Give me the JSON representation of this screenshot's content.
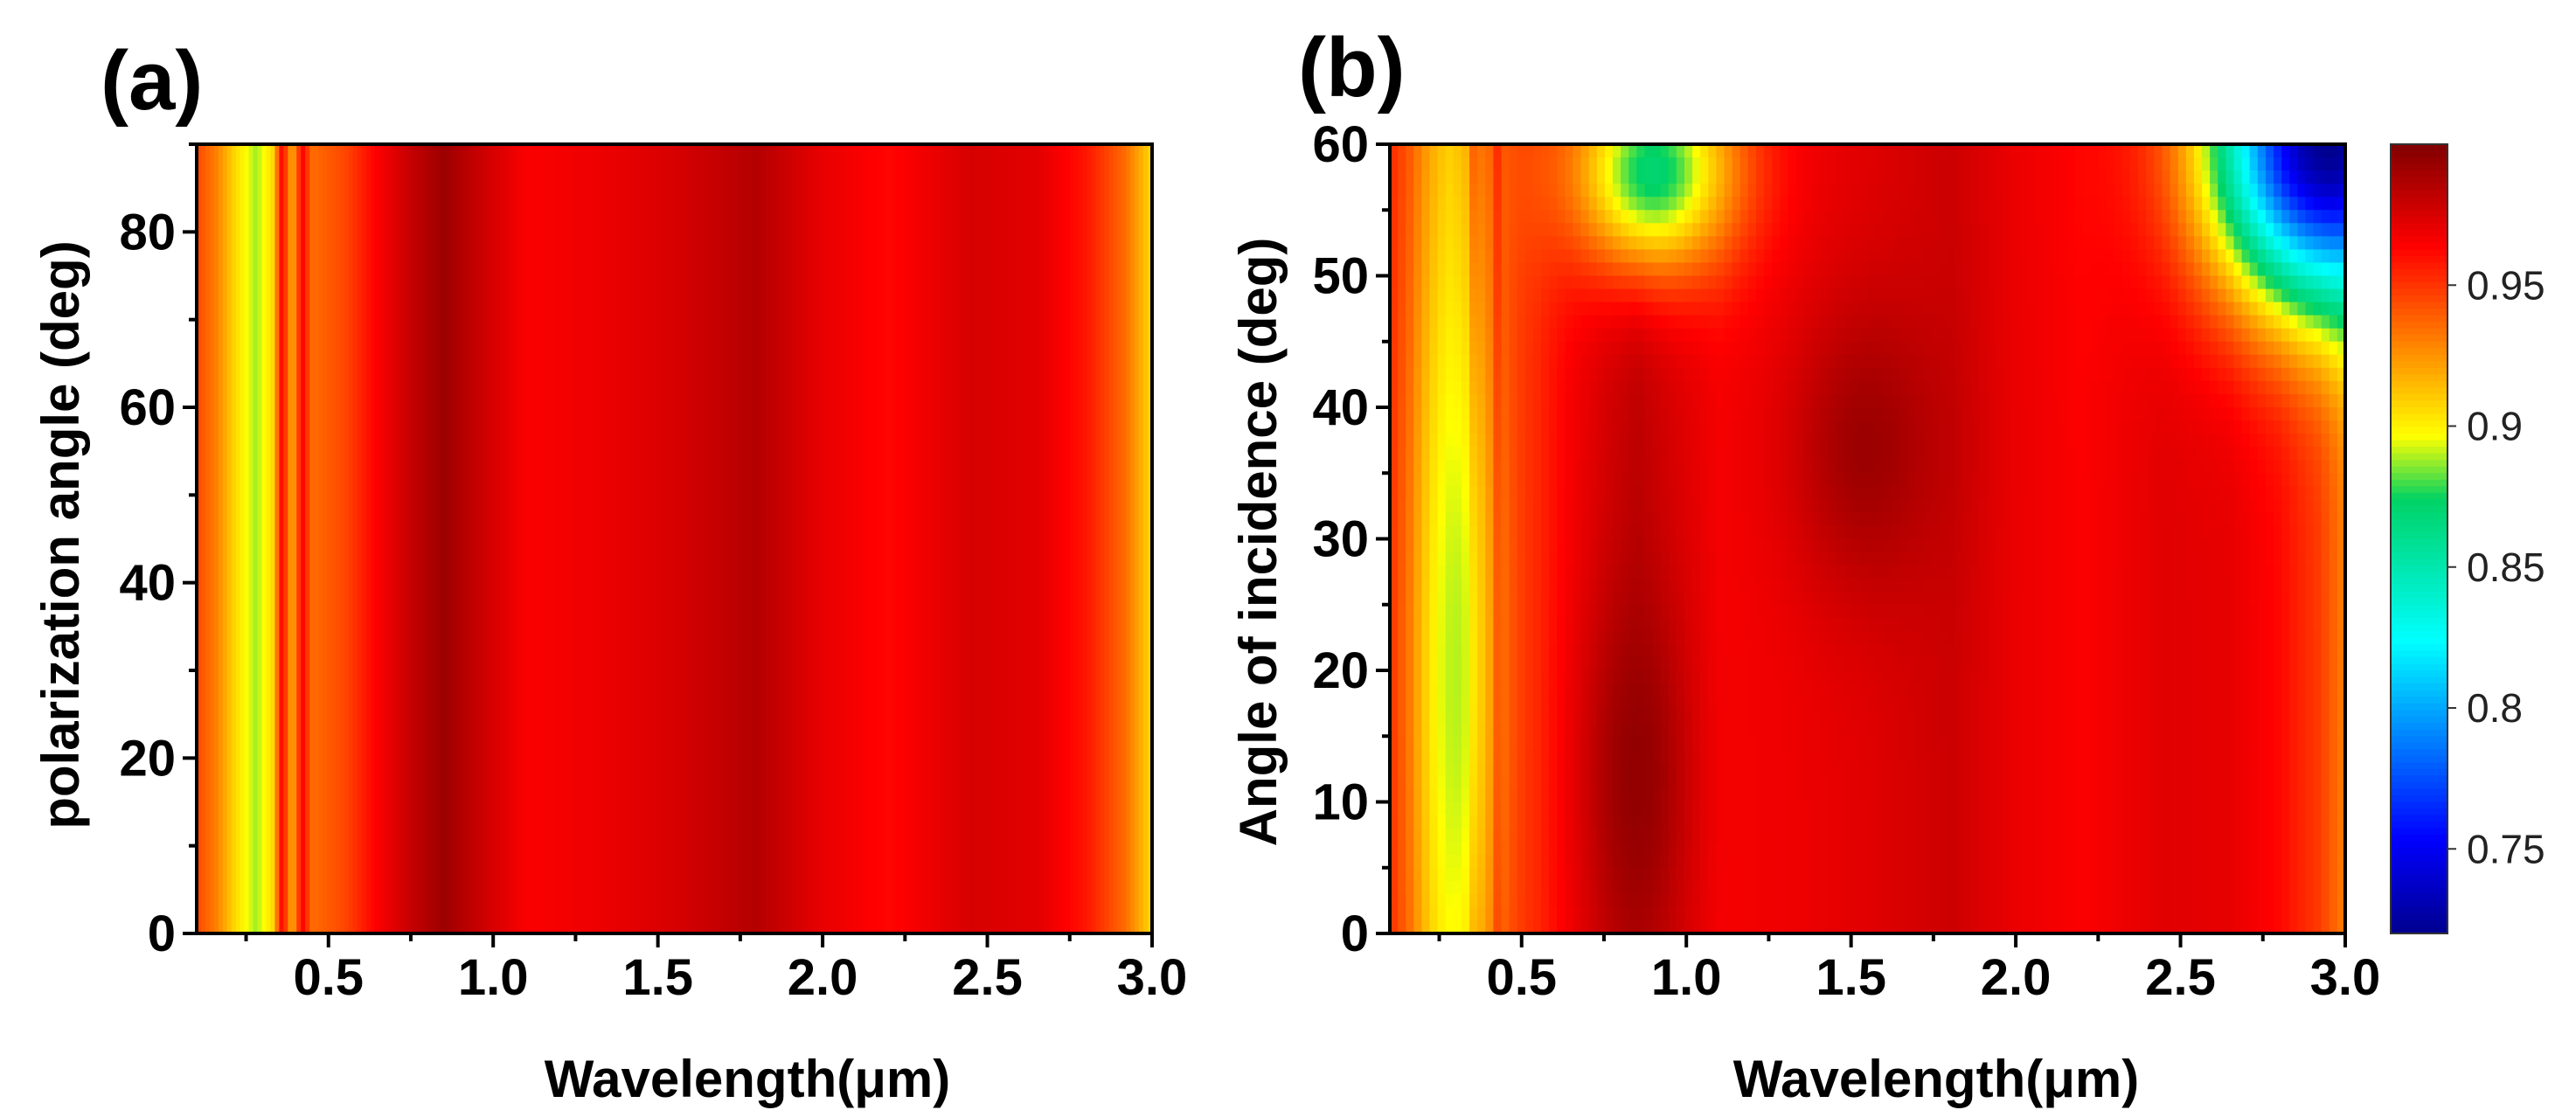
{
  "chart_data": [
    {
      "type": "heatmap",
      "panel_label": "(a)",
      "xlabel": "Wavelength(μm)",
      "ylabel": "polarization angle (deg)",
      "xlim": [
        0.1,
        3.0
      ],
      "ylim": [
        0,
        90
      ],
      "xticks": [
        "0.5",
        "1.0",
        "1.5",
        "2.0",
        "2.5",
        "3.0"
      ],
      "yticks": [
        "0",
        "20",
        "40",
        "60",
        "80"
      ],
      "colorbar_shared": true,
      "absorptance_vs_wavelength": [
        {
          "x": 0.1,
          "v": 0.945
        },
        {
          "x": 0.16,
          "v": 0.93
        },
        {
          "x": 0.22,
          "v": 0.905
        },
        {
          "x": 0.28,
          "v": 0.888
        },
        {
          "x": 0.33,
          "v": 0.905
        },
        {
          "x": 0.36,
          "v": 0.965
        },
        {
          "x": 0.39,
          "v": 0.915
        },
        {
          "x": 0.42,
          "v": 0.965
        },
        {
          "x": 0.45,
          "v": 0.935
        },
        {
          "x": 0.55,
          "v": 0.945
        },
        {
          "x": 0.65,
          "v": 0.965
        },
        {
          "x": 0.75,
          "v": 0.98
        },
        {
          "x": 0.85,
          "v": 0.992
        },
        {
          "x": 0.95,
          "v": 0.98
        },
        {
          "x": 1.1,
          "v": 0.965
        },
        {
          "x": 1.3,
          "v": 0.968
        },
        {
          "x": 1.55,
          "v": 0.975
        },
        {
          "x": 1.8,
          "v": 0.985
        },
        {
          "x": 2.0,
          "v": 0.97
        },
        {
          "x": 2.2,
          "v": 0.962
        },
        {
          "x": 2.45,
          "v": 0.975
        },
        {
          "x": 2.65,
          "v": 0.972
        },
        {
          "x": 2.8,
          "v": 0.958
        },
        {
          "x": 2.92,
          "v": 0.935
        },
        {
          "x": 3.0,
          "v": 0.905
        }
      ]
    },
    {
      "type": "heatmap",
      "panel_label": "(b)",
      "xlabel": "Wavelength(μm)",
      "ylabel": "Angle of incidence (deg)",
      "xlim": [
        0.1,
        3.0
      ],
      "ylim": [
        0,
        60
      ],
      "xticks": [
        "0.5",
        "1.0",
        "1.5",
        "2.0",
        "2.5",
        "3.0"
      ],
      "yticks": [
        "0",
        "10",
        "20",
        "30",
        "40",
        "50",
        "60"
      ],
      "colorbar": {
        "range": [
          0.72,
          1.0
        ],
        "tick_labels": [
          "0.75",
          "0.8",
          "0.85",
          "0.9",
          "0.95"
        ],
        "tick_values": [
          0.75,
          0.8,
          0.85,
          0.9,
          0.95
        ]
      },
      "features": [
        {
          "x": 0.3,
          "y": 20,
          "v": 0.89,
          "spread_x": 0.12,
          "spread_y": 40
        },
        {
          "x": 0.85,
          "y": 12,
          "v": 0.995,
          "spread_x": 0.14,
          "spread_y": 14
        },
        {
          "x": 1.55,
          "y": 37,
          "v": 0.992,
          "spread_x": 0.22,
          "spread_y": 11
        },
        {
          "x": 0.9,
          "y": 58,
          "v": 0.87,
          "spread_x": 0.25,
          "spread_y": 8
        },
        {
          "x": 2.95,
          "y": 60,
          "v": 0.72,
          "spread_x": 0.35,
          "spread_y": 12
        }
      ]
    }
  ]
}
